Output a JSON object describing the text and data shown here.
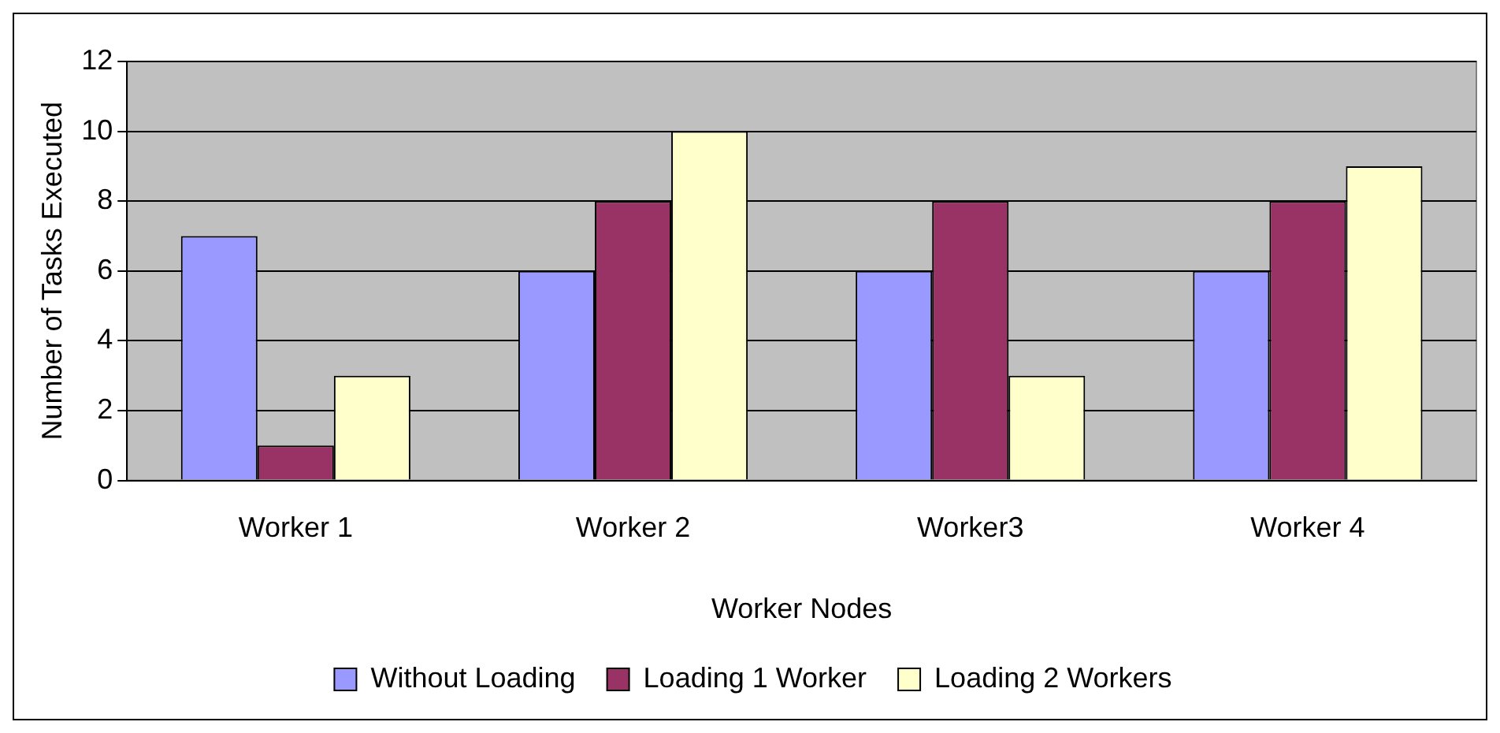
{
  "chart_data": {
    "type": "bar",
    "xlabel": "Worker Nodes",
    "ylabel": "Number of Tasks Executed",
    "categories": [
      "Worker 1",
      "Worker 2",
      "Worker3",
      "Worker 4"
    ],
    "series": [
      {
        "name": "Without Loading",
        "color": "#9999ff",
        "values": [
          7,
          6,
          6,
          6
        ]
      },
      {
        "name": "Loading 1 Worker",
        "color": "#993366",
        "values": [
          1,
          8,
          8,
          8
        ]
      },
      {
        "name": "Loading 2 Workers",
        "color": "#ffffcc",
        "values": [
          3,
          10,
          3,
          9
        ]
      }
    ],
    "ylim": [
      0,
      12
    ],
    "yticks": [
      0,
      2,
      4,
      6,
      8,
      10,
      12
    ],
    "grid": "y",
    "legend": "bottom"
  }
}
